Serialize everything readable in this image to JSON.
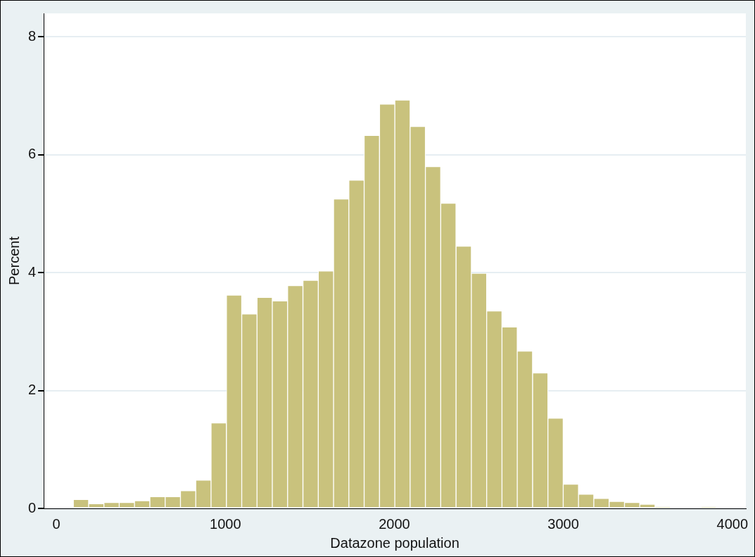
{
  "chart_data": {
    "type": "histogram",
    "xlabel": "Datazone population",
    "ylabel": "Percent",
    "bins": [
      100,
      191,
      281,
      372,
      462,
      553,
      644,
      734,
      825,
      915,
      1006,
      1097,
      1187,
      1278,
      1368,
      1459,
      1550,
      1640,
      1731,
      1821,
      1912,
      2003,
      2093,
      2184,
      2274,
      2365,
      2456,
      2546,
      2637,
      2727,
      2818,
      2909,
      2999,
      3090,
      3180,
      3271,
      3362,
      3452,
      3543,
      3633,
      3724,
      3815,
      3905
    ],
    "values": [
      0.15,
      0.08,
      0.1,
      0.1,
      0.13,
      0.2,
      0.2,
      0.3,
      0.48,
      1.45,
      3.62,
      3.3,
      3.58,
      3.52,
      3.78,
      3.87,
      4.03,
      5.25,
      5.57,
      6.33,
      6.86,
      6.93,
      6.48,
      5.8,
      5.18,
      4.45,
      3.99,
      3.35,
      3.08,
      2.67,
      2.3,
      1.53,
      0.41,
      0.24,
      0.17,
      0.12,
      0.1,
      0.07,
      0.03,
      null,
      null,
      0.03
    ],
    "color": "#c9c27d",
    "xlim": [
      -75,
      4080
    ],
    "ylim": [
      0,
      8.4
    ],
    "xticks": [
      0,
      1000,
      2000,
      3000,
      4000
    ],
    "yticks": [
      0,
      2,
      4,
      6,
      8
    ],
    "grid": "y",
    "legend": false
  }
}
